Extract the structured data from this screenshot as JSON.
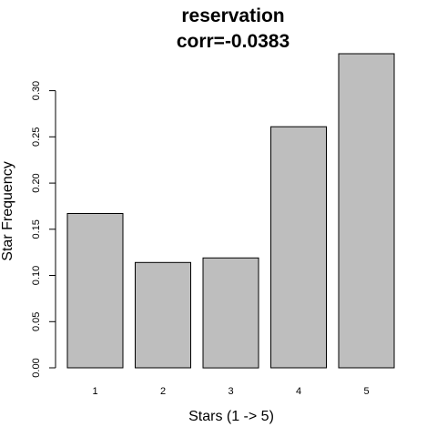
{
  "chart_data": {
    "type": "bar",
    "title": "reservation",
    "subtitle": "corr=-0.0383",
    "xlabel": "Stars (1 -> 5)",
    "ylabel": "Star Frequency",
    "categories": [
      "1",
      "2",
      "3",
      "4",
      "5"
    ],
    "values": [
      0.167,
      0.114,
      0.119,
      0.261,
      0.34
    ],
    "yticks": [
      {
        "value": 0.0,
        "label": "0.00"
      },
      {
        "value": 0.05,
        "label": "0.05"
      },
      {
        "value": 0.1,
        "label": "0.10"
      },
      {
        "value": 0.15,
        "label": "0.15"
      },
      {
        "value": 0.2,
        "label": "0.20"
      },
      {
        "value": 0.25,
        "label": "0.25"
      },
      {
        "value": 0.3,
        "label": "0.30"
      }
    ],
    "ylim": [
      0,
      0.34
    ],
    "bar_color": "#bebebe",
    "grid": false
  }
}
